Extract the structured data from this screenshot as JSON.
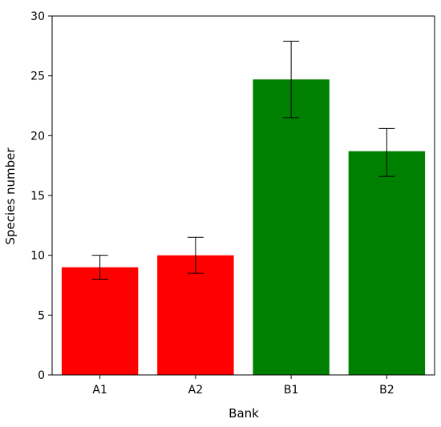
{
  "chart_data": {
    "type": "bar",
    "title": "",
    "xlabel": "Bank",
    "ylabel": "Species number",
    "categories": [
      "A1",
      "A2",
      "B1",
      "B2"
    ],
    "values": [
      9.0,
      10.0,
      24.7,
      18.7
    ],
    "error_low": [
      8.0,
      8.5,
      21.5,
      16.6
    ],
    "error_high": [
      10.0,
      11.5,
      27.9,
      20.6
    ],
    "bar_colors": [
      "#ff0000",
      "#ff0000",
      "#008000",
      "#008000"
    ],
    "ylim": [
      0,
      30
    ],
    "yticks": [
      "0",
      "5",
      "10",
      "15",
      "20",
      "25",
      "30"
    ],
    "grid": false
  }
}
